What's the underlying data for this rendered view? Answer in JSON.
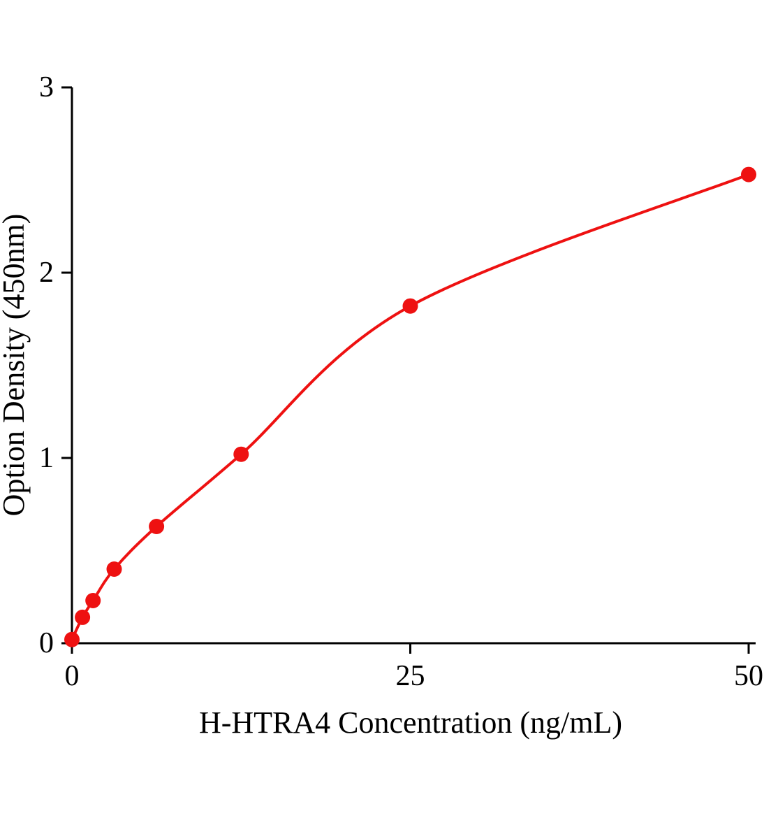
{
  "chart_data": {
    "type": "scatter",
    "title": "",
    "xlabel": "H-HTRA4 Concentration (ng/mL)",
    "ylabel": "Option Density (450nm)",
    "x": [
      0,
      0.78,
      1.56,
      3.12,
      6.25,
      12.5,
      25,
      50
    ],
    "y": [
      0.02,
      0.14,
      0.23,
      0.4,
      0.63,
      1.02,
      1.82,
      2.53
    ],
    "curve": "smooth fitted curve through points",
    "xlim": [
      0,
      50
    ],
    "ylim": [
      0,
      3
    ],
    "xticks": [
      0,
      25,
      50
    ],
    "yticks": [
      0,
      1,
      2,
      3
    ],
    "grid": false,
    "legend": null,
    "marker_color": "#ee1111",
    "line_color": "#ee1111",
    "axis_color": "#000000",
    "marker_radius": 11
  }
}
